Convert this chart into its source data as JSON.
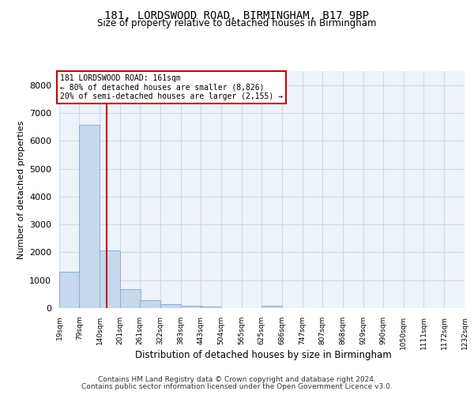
{
  "title1": "181, LORDSWOOD ROAD, BIRMINGHAM, B17 9BP",
  "title2": "Size of property relative to detached houses in Birmingham",
  "xlabel": "Distribution of detached houses by size in Birmingham",
  "ylabel": "Number of detached properties",
  "bar_color": "#c5d8ee",
  "bar_edge_color": "#89afd4",
  "grid_color": "#d0d9e8",
  "background_color": "#eef2f9",
  "vline_x": 161,
  "vline_color": "#cc0000",
  "annotation_box_color": "#cc0000",
  "annotation_lines": [
    "181 LORDSWOOD ROAD: 161sqm",
    "← 80% of detached houses are smaller (8,826)",
    "20% of semi-detached houses are larger (2,155) →"
  ],
  "bins_left": [
    19,
    79,
    140,
    201,
    261,
    322,
    383,
    443,
    504,
    565,
    625,
    686,
    747,
    807,
    868,
    929,
    990,
    1050,
    1111,
    1172
  ],
  "bin_width": 61,
  "bar_heights": [
    1310,
    6560,
    2075,
    680,
    295,
    130,
    80,
    60,
    0,
    0,
    75,
    0,
    0,
    0,
    0,
    0,
    0,
    0,
    0,
    0
  ],
  "ylim": [
    0,
    8500
  ],
  "xlim": [
    19,
    1232
  ],
  "tick_labels": [
    "19sqm",
    "79sqm",
    "140sqm",
    "201sqm",
    "261sqm",
    "322sqm",
    "383sqm",
    "443sqm",
    "504sqm",
    "565sqm",
    "625sqm",
    "686sqm",
    "747sqm",
    "807sqm",
    "868sqm",
    "929sqm",
    "990sqm",
    "1050sqm",
    "1111sqm",
    "1172sqm",
    "1232sqm"
  ],
  "footer1": "Contains HM Land Registry data © Crown copyright and database right 2024.",
  "footer2": "Contains public sector information licensed under the Open Government Licence v3.0.",
  "yticks": [
    0,
    1000,
    2000,
    3000,
    4000,
    5000,
    6000,
    7000,
    8000
  ]
}
